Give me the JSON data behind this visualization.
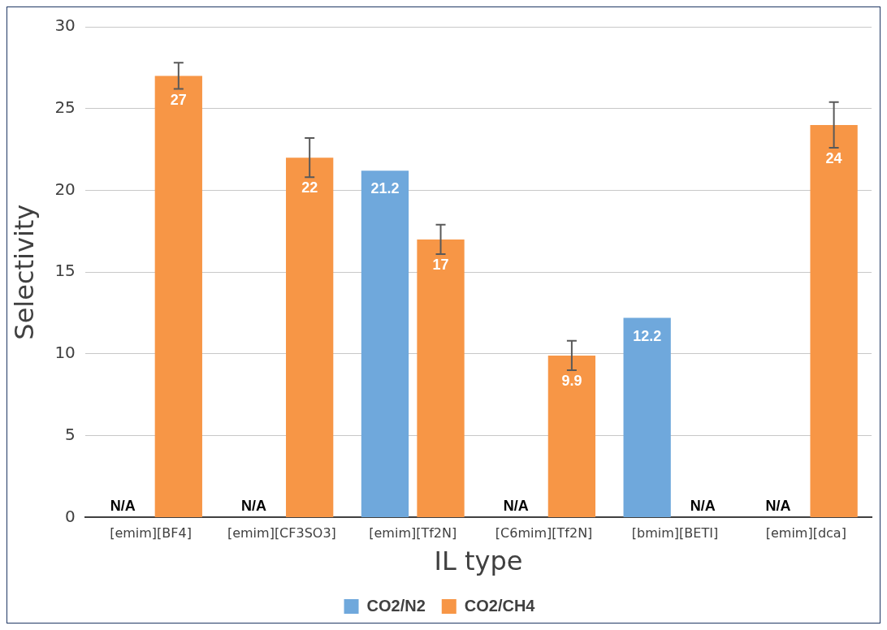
{
  "chart_data": {
    "type": "bar",
    "xlabel": "IL type",
    "ylabel": "Selectivity",
    "categories": [
      "[emim][BF4]",
      "[emim][CF3SO3]",
      "[emim][Tf2N]",
      "[C6mim][Tf2N]",
      "[bmim][BETI]",
      "[emim][dca]"
    ],
    "series": [
      {
        "name": "CO2/N2",
        "color": "#6fa8dc",
        "values": [
          null,
          null,
          21.2,
          null,
          12.2,
          null
        ],
        "value_labels": [
          "N/A",
          "N/A",
          "21.2",
          "N/A",
          "12.2",
          "N/A"
        ]
      },
      {
        "name": "CO2/CH4",
        "color": "#f79646",
        "values": [
          27,
          22,
          17,
          9.9,
          null,
          24
        ],
        "errors": [
          0.8,
          1.2,
          0.9,
          0.9,
          null,
          1.4
        ],
        "value_labels": [
          "27",
          "22",
          "17",
          "9.9",
          "N/A",
          "24"
        ]
      }
    ],
    "ylim": [
      0,
      30
    ],
    "yticks": [
      0,
      5,
      10,
      15,
      20,
      25,
      30
    ],
    "grid": "y",
    "legend": "bottom"
  }
}
